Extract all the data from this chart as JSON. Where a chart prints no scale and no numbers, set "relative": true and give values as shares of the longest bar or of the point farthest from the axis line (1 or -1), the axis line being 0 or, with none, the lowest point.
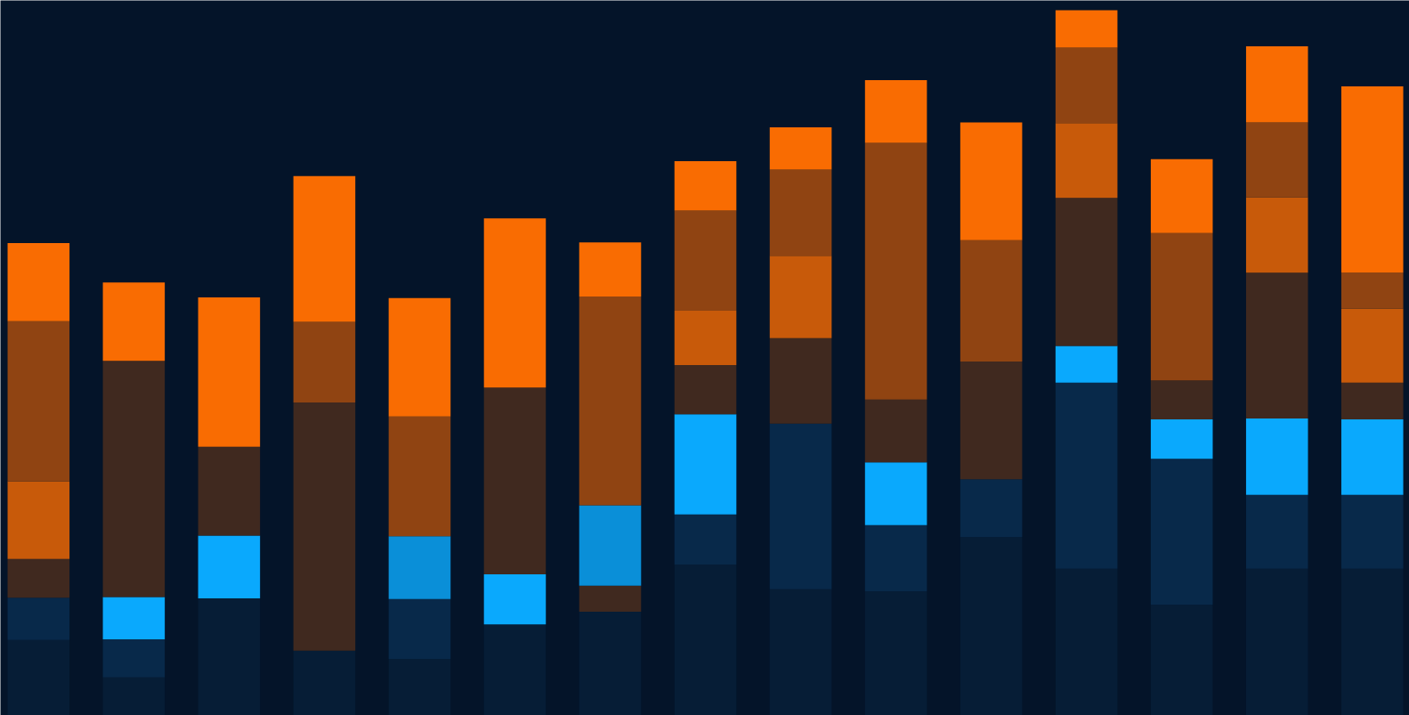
{
  "chart_data": {
    "type": "bar",
    "stacked": true,
    "relative": true,
    "grid": false,
    "categories": [
      null,
      null,
      null,
      null,
      null,
      null,
      null,
      null,
      null,
      null,
      null,
      null,
      null,
      null,
      null
    ],
    "series": [
      {
        "color": "#061d36",
        "values": [
          0.107,
          0.054,
          0.166,
          0.092,
          0.08,
          0.129,
          0.147,
          0.214,
          0.179,
          0.176,
          0.253,
          0.208,
          0.157,
          0.208,
          0.208
        ]
      },
      {
        "color": "#08294a",
        "values": [
          0.06,
          0.054,
          null,
          null,
          0.085,
          null,
          null,
          0.071,
          0.235,
          0.094,
          0.082,
          0.264,
          0.207,
          0.105,
          0.105
        ]
      },
      {
        "color": "#0aa9fd",
        "values": [
          null,
          0.06,
          0.089,
          null,
          null,
          0.071,
          null,
          0.142,
          null,
          0.089,
          null,
          0.052,
          0.056,
          0.108,
          0.107
        ]
      },
      {
        "color": "#40291f",
        "values": [
          0.055,
          0.335,
          0.126,
          0.352,
          null,
          0.265,
          0.037,
          0.07,
          0.121,
          0.089,
          0.167,
          0.21,
          0.055,
          0.207,
          0.052
        ]
      },
      {
        "color": "#0a8fd8",
        "values": [
          null,
          null,
          null,
          null,
          0.089,
          null,
          0.114,
          null,
          null,
          null,
          null,
          null,
          null,
          null,
          null
        ]
      },
      {
        "color": "#c85a0a",
        "values": [
          0.11,
          null,
          null,
          null,
          null,
          null,
          null,
          0.077,
          0.117,
          null,
          null,
          0.106,
          null,
          0.107,
          0.105
        ]
      },
      {
        "color": "#904412",
        "values": [
          0.227,
          null,
          null,
          0.114,
          0.17,
          null,
          0.296,
          0.142,
          0.122,
          0.364,
          0.172,
          0.107,
          0.209,
          0.106,
          0.051
        ]
      },
      {
        "color": "#f96c02",
        "values": [
          0.111,
          0.111,
          0.212,
          0.207,
          0.168,
          0.24,
          0.077,
          0.07,
          0.06,
          0.089,
          0.167,
          0.053,
          0.105,
          0.108,
          0.264
        ]
      }
    ]
  }
}
